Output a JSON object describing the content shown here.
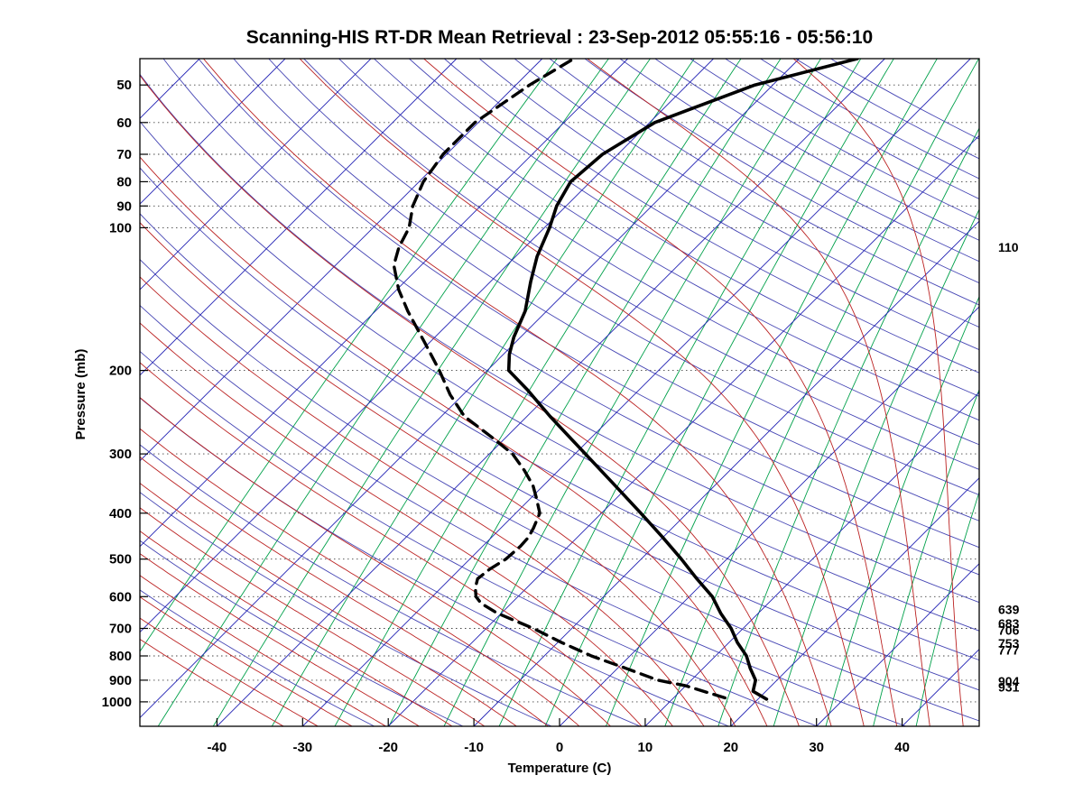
{
  "chart_data": {
    "type": "line",
    "chart_kind": "skew-t-log-p",
    "title": "Scanning-HIS RT-DR Mean Retrieval : 23-Sep-2012 05:55:16 - 05:56:10",
    "xlabel": "Temperature (C)",
    "ylabel": "Pressure (mb)",
    "x_ticks": [
      -40,
      -30,
      -20,
      -10,
      0,
      10,
      20,
      30,
      40
    ],
    "p_ticks": [
      50,
      60,
      70,
      80,
      90,
      100,
      200,
      300,
      400,
      500,
      600,
      700,
      800,
      900,
      1000
    ],
    "p_range": [
      44,
      1126
    ],
    "t_axis_range": [
      -49,
      49
    ],
    "skew": "isotherms at 45 degrees",
    "grid": "horizontal dotted lines at pressure ticks",
    "legend_position": "none",
    "right_pressure_labels": [
      110,
      639,
      683,
      706,
      753,
      777,
      904,
      931
    ],
    "series": [
      {
        "name": "temperature",
        "line": "solid",
        "color": "#000000",
        "points_p_T": [
          [
            987,
            21.0
          ],
          [
            950,
            18.5
          ],
          [
            900,
            17.5
          ],
          [
            850,
            15.5
          ],
          [
            800,
            13.6
          ],
          [
            750,
            11.0
          ],
          [
            700,
            8.6
          ],
          [
            650,
            5.6
          ],
          [
            600,
            2.7
          ],
          [
            550,
            -1.2
          ],
          [
            500,
            -5.3
          ],
          [
            450,
            -10.0
          ],
          [
            400,
            -15.4
          ],
          [
            350,
            -21.6
          ],
          [
            300,
            -28.8
          ],
          [
            250,
            -37.3
          ],
          [
            220,
            -43.0
          ],
          [
            200,
            -47.5
          ],
          [
            185,
            -49.3
          ],
          [
            170,
            -50.8
          ],
          [
            150,
            -52.5
          ],
          [
            130,
            -55.3
          ],
          [
            115,
            -57.5
          ],
          [
            100,
            -59.4
          ],
          [
            90,
            -61.1
          ],
          [
            80,
            -62.3
          ],
          [
            70,
            -61.8
          ],
          [
            60,
            -59.4
          ],
          [
            50,
            -52.1
          ],
          [
            44,
            -43.2
          ]
        ]
      },
      {
        "name": "dew point",
        "line": "dashed",
        "color": "#000000",
        "points_p_T": [
          [
            981,
            16.0
          ],
          [
            925,
            10.0
          ],
          [
            900,
            6.1
          ],
          [
            850,
            1.0
          ],
          [
            800,
            -4.5
          ],
          [
            750,
            -9.5
          ],
          [
            700,
            -14.5
          ],
          [
            650,
            -20.5
          ],
          [
            620,
            -23.5
          ],
          [
            600,
            -24.9
          ],
          [
            575,
            -26.0
          ],
          [
            550,
            -26.8
          ],
          [
            525,
            -26.5
          ],
          [
            500,
            -25.8
          ],
          [
            470,
            -25.6
          ],
          [
            450,
            -25.7
          ],
          [
            430,
            -26.2
          ],
          [
            400,
            -27.2
          ],
          [
            370,
            -29.5
          ],
          [
            350,
            -31.2
          ],
          [
            325,
            -34.0
          ],
          [
            300,
            -37.3
          ],
          [
            275,
            -42.0
          ],
          [
            250,
            -47.3
          ],
          [
            225,
            -51.5
          ],
          [
            200,
            -55.6
          ],
          [
            175,
            -60.5
          ],
          [
            150,
            -66.2
          ],
          [
            135,
            -69.8
          ],
          [
            120,
            -73.2
          ],
          [
            110,
            -74.7
          ],
          [
            100,
            -75.8
          ],
          [
            90,
            -77.9
          ],
          [
            80,
            -79.5
          ],
          [
            70,
            -80.4
          ],
          [
            60,
            -80.4
          ],
          [
            50,
            -78.4
          ],
          [
            44,
            -76.3
          ]
        ]
      }
    ],
    "background_lines": {
      "grid_color": "#444444",
      "isotherms": {
        "color": "#2222b4",
        "min_c": -120,
        "max_c": 40,
        "step_c": 10
      },
      "dry_adiabats": {
        "color": "#4646b4",
        "min_theta_c": -30,
        "max_theta_c": 280,
        "step_c": 10
      },
      "moist_adiabats": {
        "color": "#bb2222",
        "min_thetaw_c": -40,
        "max_thetaw_c": 44,
        "step_c": 4
      },
      "mixing_ratio_gkg": {
        "color": "#00a04a",
        "values": [
          0.02,
          0.05,
          0.1,
          0.2,
          0.4,
          0.7,
          1.2,
          2,
          3,
          5,
          8,
          12,
          18,
          26,
          36,
          48
        ]
      }
    }
  }
}
